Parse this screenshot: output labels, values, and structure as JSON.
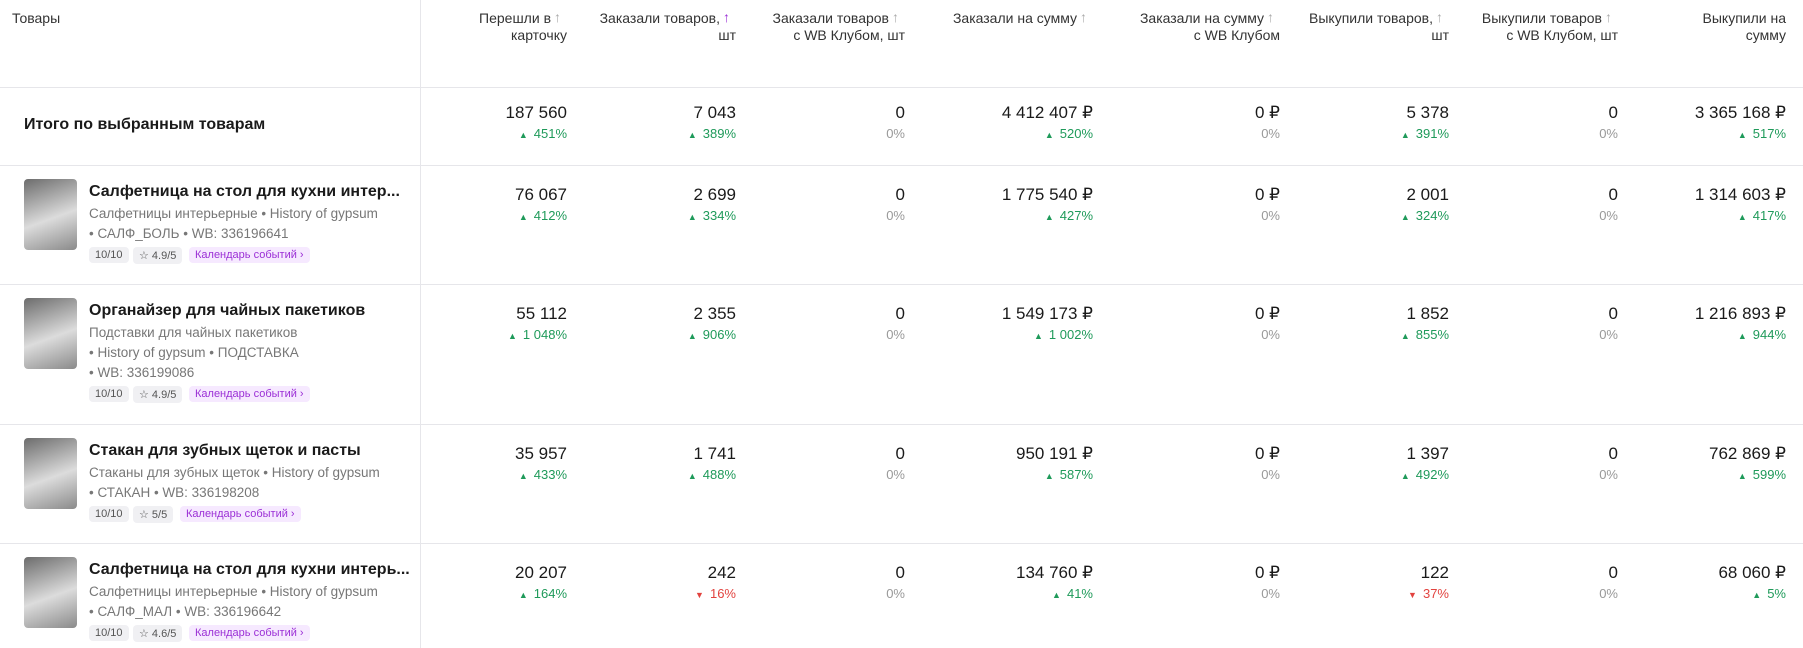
{
  "header": {
    "product_column": "Товары",
    "columns": [
      {
        "title_lines": [
          "Перешли в",
          "карточку"
        ],
        "active_sort": false
      },
      {
        "title_lines": [
          "Заказали товаров,",
          "шт"
        ],
        "active_sort": true
      },
      {
        "title_lines": [
          "Заказали товаров",
          "с WB Клубом, шт"
        ],
        "active_sort": false
      },
      {
        "title_lines": [
          "Заказали на сумму"
        ],
        "active_sort": false
      },
      {
        "title_lines": [
          "Заказали на сумму",
          "с WB Клубом"
        ],
        "active_sort": false
      },
      {
        "title_lines": [
          "Выкупили товаров,",
          "шт"
        ],
        "active_sort": false
      },
      {
        "title_lines": [
          "Выкупили товаров",
          "с WB Клубом, шт"
        ],
        "active_sort": false
      },
      {
        "title_lines": [
          "Выкупили на",
          "сумму"
        ],
        "active_sort": false
      }
    ]
  },
  "total": {
    "label": "Итого по выбранным товарам",
    "metrics": [
      {
        "value": "187 560",
        "change": "451%",
        "trend": "up"
      },
      {
        "value": "7 043",
        "change": "389%",
        "trend": "up"
      },
      {
        "value": "0",
        "change": "0%",
        "trend": "none"
      },
      {
        "value": "4 412 407 ₽",
        "change": "520%",
        "trend": "up"
      },
      {
        "value": "0 ₽",
        "change": "0%",
        "trend": "none"
      },
      {
        "value": "5 378",
        "change": "391%",
        "trend": "up"
      },
      {
        "value": "0",
        "change": "0%",
        "trend": "none"
      },
      {
        "value": "3 365 168 ₽",
        "change": "517%",
        "trend": "up"
      }
    ]
  },
  "products": [
    {
      "name": "Салфетница на стол для кухни интер...",
      "meta": [
        "Салфетницы интерьерные • History of gypsum",
        "• САЛФ_БОЛЬ • WB: 336196641"
      ],
      "score": "10/10",
      "rating": "4.9/5",
      "tag": "Календарь событий",
      "metrics": [
        {
          "value": "76 067",
          "change": "412%",
          "trend": "up"
        },
        {
          "value": "2 699",
          "change": "334%",
          "trend": "up"
        },
        {
          "value": "0",
          "change": "0%",
          "trend": "none"
        },
        {
          "value": "1 775 540 ₽",
          "change": "427%",
          "trend": "up"
        },
        {
          "value": "0 ₽",
          "change": "0%",
          "trend": "none"
        },
        {
          "value": "2 001",
          "change": "324%",
          "trend": "up"
        },
        {
          "value": "0",
          "change": "0%",
          "trend": "none"
        },
        {
          "value": "1 314 603 ₽",
          "change": "417%",
          "trend": "up"
        }
      ]
    },
    {
      "name": "Органайзер для чайных пакетиков",
      "meta": [
        "Подставки для чайных пакетиков",
        "• History of gypsum • ПОДСТАВКА",
        "• WB: 336199086"
      ],
      "score": "10/10",
      "rating": "4.9/5",
      "tag": "Календарь событий",
      "metrics": [
        {
          "value": "55 112",
          "change": "1 048%",
          "trend": "up"
        },
        {
          "value": "2 355",
          "change": "906%",
          "trend": "up"
        },
        {
          "value": "0",
          "change": "0%",
          "trend": "none"
        },
        {
          "value": "1 549 173 ₽",
          "change": "1 002%",
          "trend": "up"
        },
        {
          "value": "0 ₽",
          "change": "0%",
          "trend": "none"
        },
        {
          "value": "1 852",
          "change": "855%",
          "trend": "up"
        },
        {
          "value": "0",
          "change": "0%",
          "trend": "none"
        },
        {
          "value": "1 216 893 ₽",
          "change": "944%",
          "trend": "up"
        }
      ]
    },
    {
      "name": "Стакан для зубных щеток и пасты",
      "meta": [
        "Стаканы для зубных щеток • History of gypsum",
        "• СТАКАН • WB: 336198208"
      ],
      "score": "10/10",
      "rating": "5/5",
      "tag": "Календарь событий",
      "metrics": [
        {
          "value": "35 957",
          "change": "433%",
          "trend": "up"
        },
        {
          "value": "1 741",
          "change": "488%",
          "trend": "up"
        },
        {
          "value": "0",
          "change": "0%",
          "trend": "none"
        },
        {
          "value": "950 191 ₽",
          "change": "587%",
          "trend": "up"
        },
        {
          "value": "0 ₽",
          "change": "0%",
          "trend": "none"
        },
        {
          "value": "1 397",
          "change": "492%",
          "trend": "up"
        },
        {
          "value": "0",
          "change": "0%",
          "trend": "none"
        },
        {
          "value": "762 869 ₽",
          "change": "599%",
          "trend": "up"
        }
      ]
    },
    {
      "name": "Салфетница на стол для кухни интерь...",
      "meta": [
        "Салфетницы интерьерные • History of gypsum",
        "• САЛФ_МАЛ • WB: 336196642"
      ],
      "score": "10/10",
      "rating": "4.6/5",
      "tag": "Календарь событий",
      "metrics": [
        {
          "value": "20 207",
          "change": "164%",
          "trend": "up"
        },
        {
          "value": "242",
          "change": "16%",
          "trend": "down"
        },
        {
          "value": "0",
          "change": "0%",
          "trend": "none"
        },
        {
          "value": "134 760 ₽",
          "change": "41%",
          "trend": "up"
        },
        {
          "value": "0 ₽",
          "change": "0%",
          "trend": "none"
        },
        {
          "value": "122",
          "change": "37%",
          "trend": "down"
        },
        {
          "value": "0",
          "change": "0%",
          "trend": "none"
        },
        {
          "value": "68 060 ₽",
          "change": "5%",
          "trend": "up"
        }
      ]
    }
  ]
}
